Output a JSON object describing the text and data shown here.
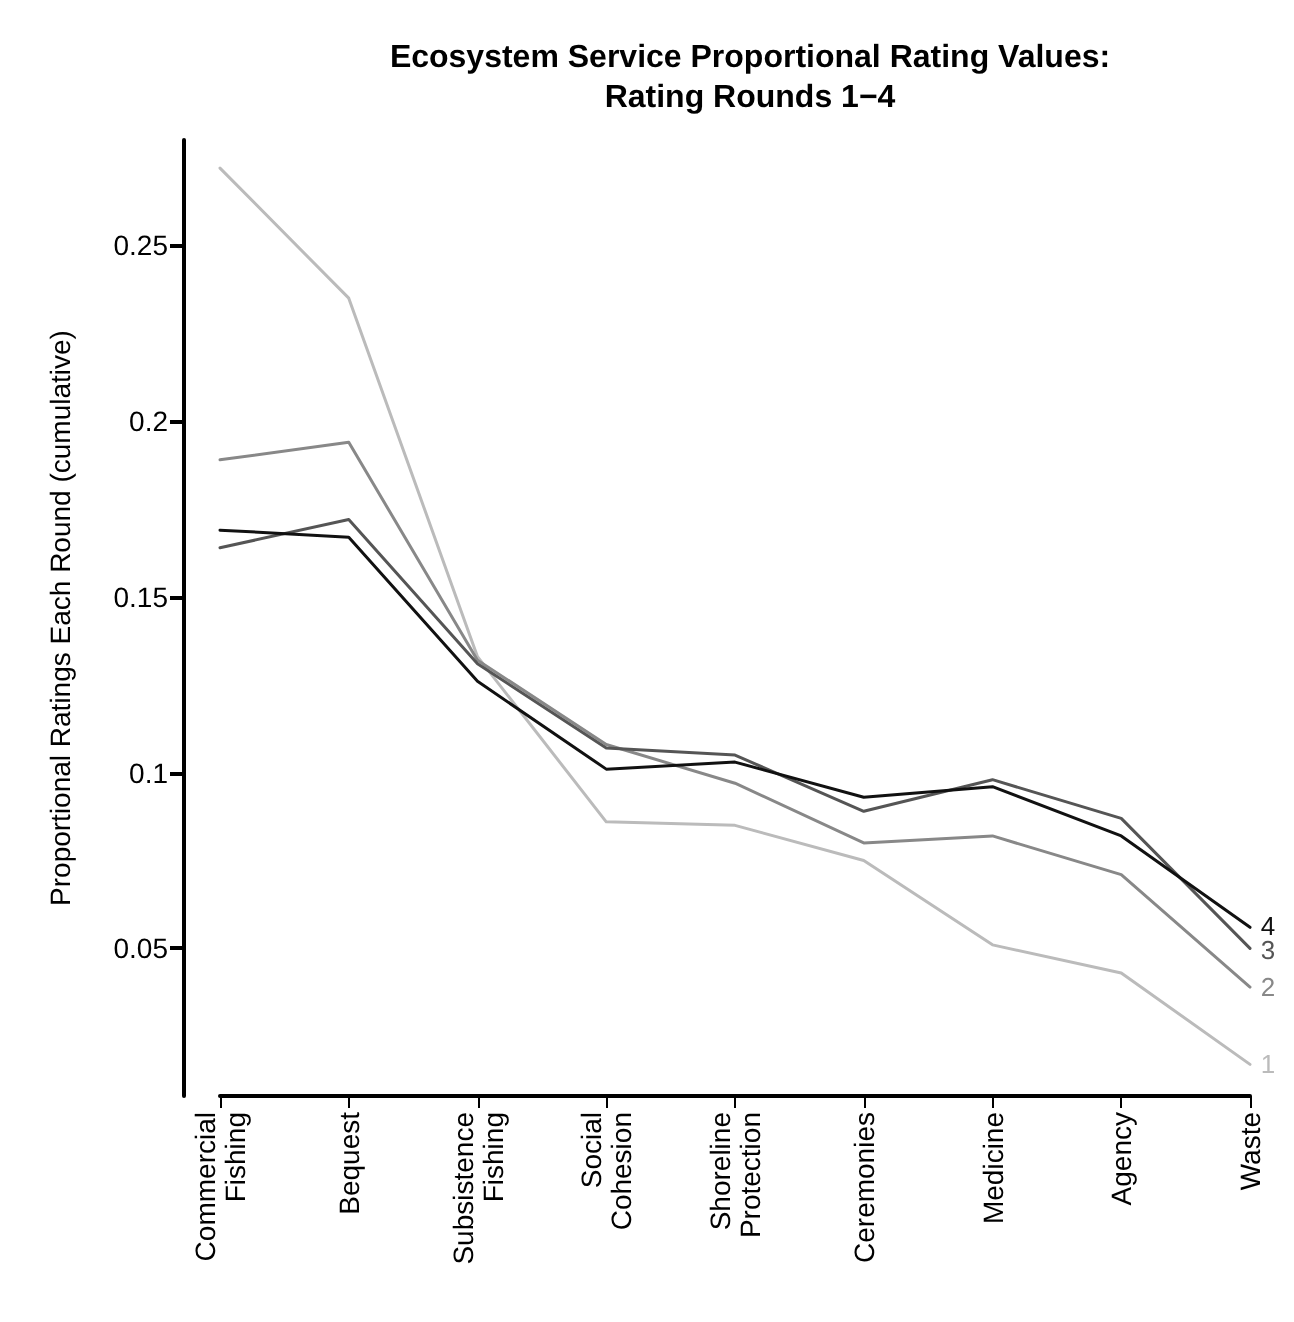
{
  "chart_data": {
    "type": "line",
    "title": "Ecosystem Service Proportional Rating Values:\nRating Rounds 1−4",
    "ylabel": "Proportional Ratings Each Round (cumulative)",
    "categories": [
      "Commercial\nFishing",
      "Bequest",
      "Subsistence\nFishing",
      "Social\nCohesion",
      "Shoreline\nProtection",
      "Ceremonies",
      "Medicine",
      "Agency",
      "Waste"
    ],
    "series": [
      {
        "name": "1",
        "color": "#bbbbbb",
        "values": [
          0.272,
          0.235,
          0.133,
          0.086,
          0.085,
          0.075,
          0.051,
          0.043,
          0.017
        ]
      },
      {
        "name": "2",
        "color": "#888888",
        "values": [
          0.189,
          0.194,
          0.132,
          0.108,
          0.097,
          0.08,
          0.082,
          0.071,
          0.039
        ]
      },
      {
        "name": "3",
        "color": "#555555",
        "values": [
          0.164,
          0.172,
          0.131,
          0.107,
          0.105,
          0.089,
          0.098,
          0.087,
          0.05
        ]
      },
      {
        "name": "4",
        "color": "#111111",
        "values": [
          0.169,
          0.167,
          0.126,
          0.101,
          0.103,
          0.093,
          0.096,
          0.082,
          0.056
        ]
      }
    ],
    "ylim": [
      0.008,
      0.28
    ],
    "yticks": [
      0.05,
      0.1,
      0.15,
      0.2,
      0.25
    ],
    "grid": false,
    "legend": false,
    "line_style": "solid"
  }
}
